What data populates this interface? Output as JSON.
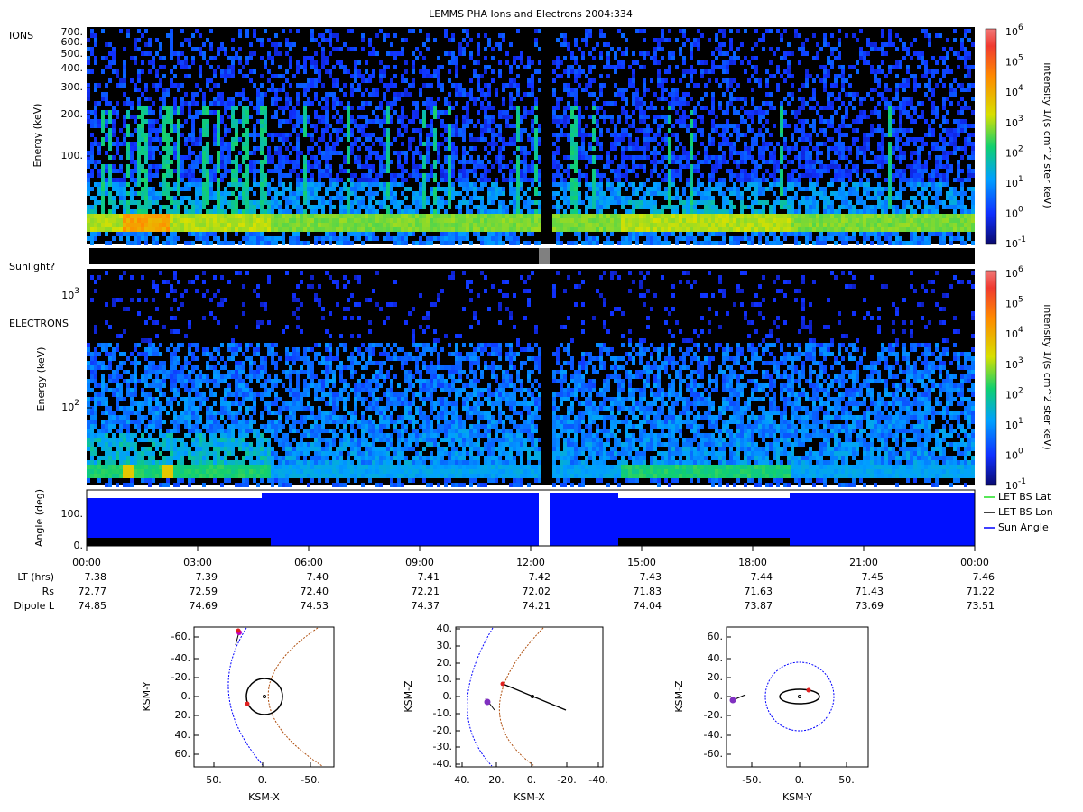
{
  "title": "LEMMS PHA Ions and Electrons  2004:334",
  "ions_panel": {
    "label": "IONS",
    "y_axis_label": "Energy (keV)",
    "y_ticks": [
      "700.",
      "600.",
      "500.",
      "400.",
      "300.",
      "200.",
      "100."
    ]
  },
  "sunlight_label": "Sunlight?",
  "electrons_panel": {
    "label": "ELECTRONS",
    "y_axis_label": "Energy (keV)",
    "y_ticks": [
      {
        "base": "10",
        "exp": "3"
      },
      {
        "base": "10",
        "exp": "2"
      }
    ]
  },
  "colorbar": {
    "label": "intensity 1/(s cm^2 ster keV)",
    "ticks": [
      {
        "base": "10",
        "exp": "6"
      },
      {
        "base": "10",
        "exp": "5"
      },
      {
        "base": "10",
        "exp": "4"
      },
      {
        "base": "10",
        "exp": "3"
      },
      {
        "base": "10",
        "exp": "2"
      },
      {
        "base": "10",
        "exp": "1"
      },
      {
        "base": "10",
        "exp": "0"
      },
      {
        "base": "10",
        "exp": "-1"
      }
    ]
  },
  "angle_panel": {
    "y_axis_label": "Angle (deg)",
    "y_ticks": [
      "100.",
      "0."
    ],
    "legend": [
      {
        "name": "LET BS Lat",
        "color": "#20e020"
      },
      {
        "name": "LET BS Lon",
        "color": "#000000"
      },
      {
        "name": "Sun Angle",
        "color": "#0000ff"
      }
    ]
  },
  "time_axis": {
    "ticks": [
      "00:00",
      "03:00",
      "06:00",
      "09:00",
      "12:00",
      "15:00",
      "18:00",
      "21:00",
      "00:00"
    ]
  },
  "ephemeris": {
    "rows": [
      {
        "label": "LT (hrs)",
        "values": [
          "7.38",
          "7.39",
          "7.40",
          "7.41",
          "7.42",
          "7.43",
          "7.44",
          "7.45",
          "7.46"
        ]
      },
      {
        "label": "Rs",
        "values": [
          "72.77",
          "72.59",
          "72.40",
          "72.21",
          "72.02",
          "71.83",
          "71.63",
          "71.43",
          "71.22"
        ]
      },
      {
        "label": "Dipole L",
        "values": [
          "74.85",
          "74.69",
          "74.53",
          "74.37",
          "74.21",
          "74.04",
          "73.87",
          "73.69",
          "73.51"
        ]
      }
    ]
  },
  "orbit_plots": [
    {
      "x_label": "KSM-X",
      "y_label": "KSM-Y",
      "x_ticks": [
        "50.",
        "0.",
        "-50."
      ],
      "y_ticks": [
        "-60.",
        "-40.",
        "-20.",
        "0.",
        "20.",
        "40.",
        "60."
      ]
    },
    {
      "x_label": "KSM-X",
      "y_label": "KSM-Z",
      "x_ticks": [
        "40.",
        "20.",
        "0.",
        "-20.",
        "-40."
      ],
      "y_ticks": [
        "40.",
        "30.",
        "20.",
        "10.",
        "0.",
        "-10.",
        "-20.",
        "-30.",
        "-40."
      ]
    },
    {
      "x_label": "KSM-Y",
      "y_label": "KSM-Z",
      "x_ticks": [
        "-50.",
        "0.",
        "50."
      ],
      "y_ticks": [
        "60.",
        "40.",
        "20.",
        "0.",
        "-20.",
        "-40.",
        "-60."
      ]
    }
  ]
}
